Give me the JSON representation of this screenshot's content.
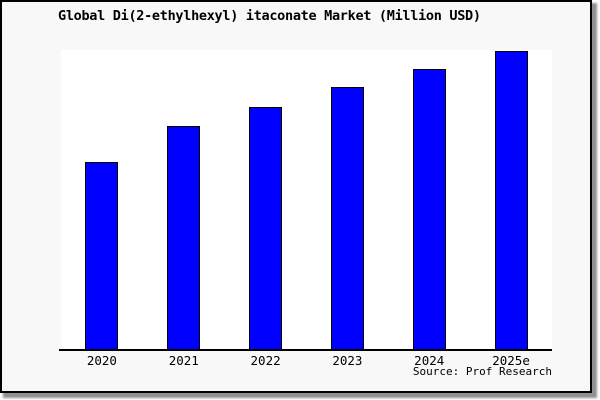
{
  "chart": {
    "title": "Global Di(2-ethylhexyl) itaconate Market (Million USD)",
    "source_label": "Source: Prof Research"
  },
  "chart_data": {
    "type": "bar",
    "title": "Global Di(2-ethylhexyl) itaconate Market (Million USD)",
    "categories": [
      "2020",
      "2021",
      "2022",
      "2023",
      "2024",
      "2025e"
    ],
    "values": [
      62.7,
      74.8,
      81.0,
      87.7,
      93.7,
      99.7
    ],
    "values_unit": "relative height, % of plot area (no y-axis labels shown)",
    "xlabel": "",
    "ylabel": "",
    "ylim": [
      0,
      100
    ],
    "grid": false,
    "legend": false,
    "y_axis_visible": false,
    "bar_color": "#0000ff",
    "bar_border_color": "#000000",
    "source": "Source: Prof Research"
  },
  "colors": {
    "figure_background": "#f8f8f8",
    "plot_background": "#ffffff",
    "card_border": "#000000",
    "shadow": "#909090",
    "text": "#000000"
  }
}
